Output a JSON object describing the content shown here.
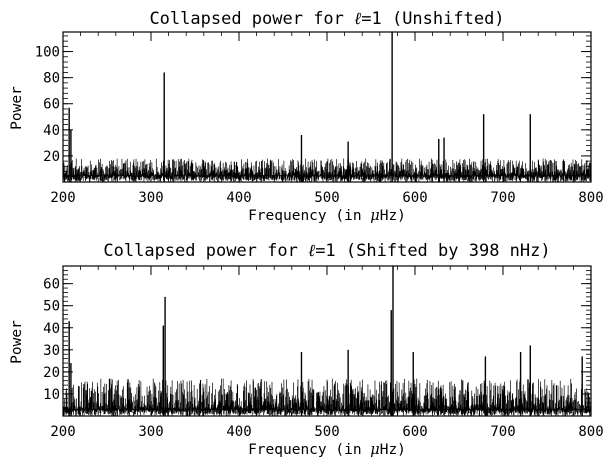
{
  "chart_data": [
    {
      "type": "line",
      "title_prefix": "Collapsed power for ",
      "title_symbol": "ℓ",
      "title_eq": "=1",
      "title_suffix": " (Unshifted)",
      "xlabel_prefix": "Frequency (in ",
      "xlabel_mu": "μ",
      "xlabel_suffix": "Hz)",
      "ylabel": "Power",
      "xlim": [
        200,
        800
      ],
      "ylim": [
        0,
        115
      ],
      "xticks": [
        "200",
        "300",
        "400",
        "500",
        "600",
        "700",
        "800"
      ],
      "yticks": [
        "20",
        "40",
        "60",
        "80",
        "100"
      ],
      "noise": {
        "baseline": 5,
        "spread": 13,
        "x_step": 0.5
      },
      "peaks": [
        {
          "x": 207,
          "y": 57
        },
        {
          "x": 209,
          "y": 40
        },
        {
          "x": 315,
          "y": 84
        },
        {
          "x": 471,
          "y": 36
        },
        {
          "x": 524,
          "y": 31
        },
        {
          "x": 574,
          "y": 115
        },
        {
          "x": 627,
          "y": 33
        },
        {
          "x": 633,
          "y": 34
        },
        {
          "x": 678,
          "y": 52
        },
        {
          "x": 731,
          "y": 52
        }
      ]
    },
    {
      "type": "line",
      "title_prefix": "Collapsed power for ",
      "title_symbol": "ℓ",
      "title_eq": "=1",
      "title_suffix": " (Shifted by 398 nHz)",
      "xlabel_prefix": "Frequency (in ",
      "xlabel_mu": "μ",
      "xlabel_suffix": "Hz)",
      "ylabel": "Power",
      "xlim": [
        200,
        800
      ],
      "ylim": [
        0,
        68
      ],
      "xticks": [
        "200",
        "300",
        "400",
        "500",
        "600",
        "700",
        "800"
      ],
      "yticks": [
        "10",
        "20",
        "30",
        "40",
        "50",
        "60"
      ],
      "noise": {
        "baseline": 3,
        "spread": 14,
        "x_step": 0.5
      },
      "peaks": [
        {
          "x": 207,
          "y": 43
        },
        {
          "x": 209,
          "y": 24
        },
        {
          "x": 314,
          "y": 41
        },
        {
          "x": 316,
          "y": 54
        },
        {
          "x": 471,
          "y": 29
        },
        {
          "x": 524,
          "y": 30
        },
        {
          "x": 573,
          "y": 48
        },
        {
          "x": 575,
          "y": 68
        },
        {
          "x": 598,
          "y": 29
        },
        {
          "x": 680,
          "y": 27
        },
        {
          "x": 720,
          "y": 29
        },
        {
          "x": 731,
          "y": 32
        },
        {
          "x": 790,
          "y": 27
        }
      ]
    }
  ]
}
